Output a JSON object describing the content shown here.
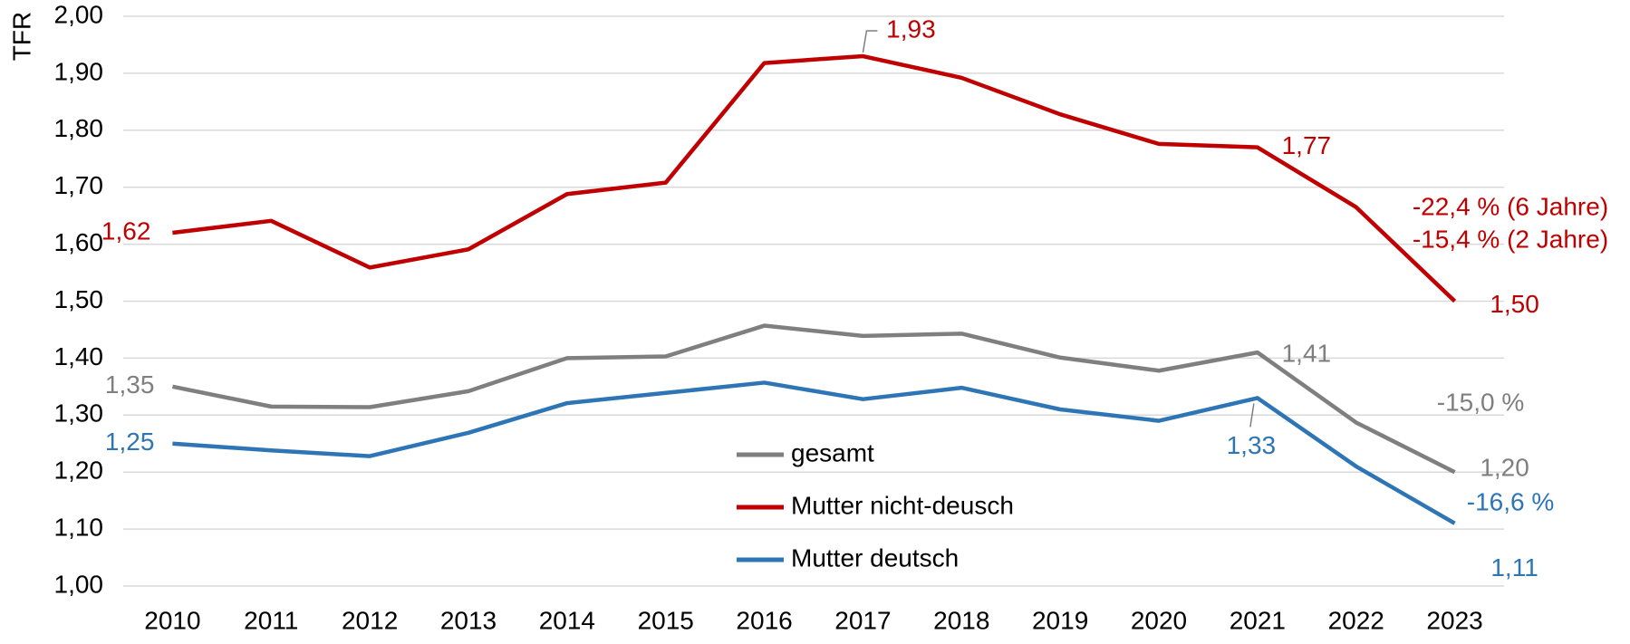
{
  "chart_data": {
    "type": "line",
    "y_label": "TFR",
    "categories": [
      "2010",
      "2011",
      "2012",
      "2013",
      "2014",
      "2015",
      "2016",
      "2017",
      "2018",
      "2019",
      "2020",
      "2021",
      "2022",
      "2023"
    ],
    "series": [
      {
        "name": "gesamt",
        "color": "#7f7f7f",
        "values": [
          1.35,
          1.315,
          1.314,
          1.342,
          1.4,
          1.403,
          1.457,
          1.439,
          1.443,
          1.401,
          1.378,
          1.41,
          1.287,
          1.2
        ],
        "value_labels": [
          "1,35",
          null,
          null,
          null,
          null,
          null,
          null,
          null,
          null,
          null,
          null,
          "1,41",
          null,
          "1,20"
        ]
      },
      {
        "name": "Mutter nicht-deusch",
        "color": "#c00000",
        "values": [
          1.62,
          1.641,
          1.559,
          1.591,
          1.688,
          1.708,
          1.918,
          1.93,
          1.892,
          1.828,
          1.776,
          1.77,
          1.665,
          1.5
        ],
        "value_labels": [
          "1,62",
          null,
          null,
          null,
          null,
          null,
          null,
          "1,93",
          null,
          null,
          null,
          "1,77",
          null,
          "1,50"
        ]
      },
      {
        "name": "Mutter deutsch",
        "color": "#2e75b6",
        "values": [
          1.25,
          1.238,
          1.228,
          1.269,
          1.321,
          1.339,
          1.357,
          1.328,
          1.348,
          1.31,
          1.29,
          1.33,
          1.21,
          1.11
        ],
        "value_labels": [
          "1,25",
          null,
          null,
          null,
          null,
          null,
          null,
          null,
          null,
          null,
          null,
          "1,33",
          null,
          "1,11"
        ]
      }
    ],
    "annotations": [
      {
        "text": "-22,4 % (6 Jahre)",
        "color": "#c00000"
      },
      {
        "text": "-15,4 % (2 Jahre)",
        "color": "#c00000"
      },
      {
        "text": "-15,0 %",
        "color": "#7f7f7f"
      },
      {
        "text": "-16,6  %",
        "color": "#2e75b6"
      }
    ],
    "ylim": [
      1.0,
      2.0
    ],
    "yticks": [
      {
        "value": 1.0,
        "label": "1,00"
      },
      {
        "value": 1.1,
        "label": "1,10"
      },
      {
        "value": 1.2,
        "label": "1,20"
      },
      {
        "value": 1.3,
        "label": "1,30"
      },
      {
        "value": 1.4,
        "label": "1,40"
      },
      {
        "value": 1.5,
        "label": "1,50"
      },
      {
        "value": 1.6,
        "label": "1,60"
      },
      {
        "value": 1.7,
        "label": "1,70"
      },
      {
        "value": 1.8,
        "label": "1,80"
      },
      {
        "value": 1.9,
        "label": "1,90"
      },
      {
        "value": 2.0,
        "label": "2,00"
      }
    ],
    "grid": true,
    "legend": "center"
  }
}
